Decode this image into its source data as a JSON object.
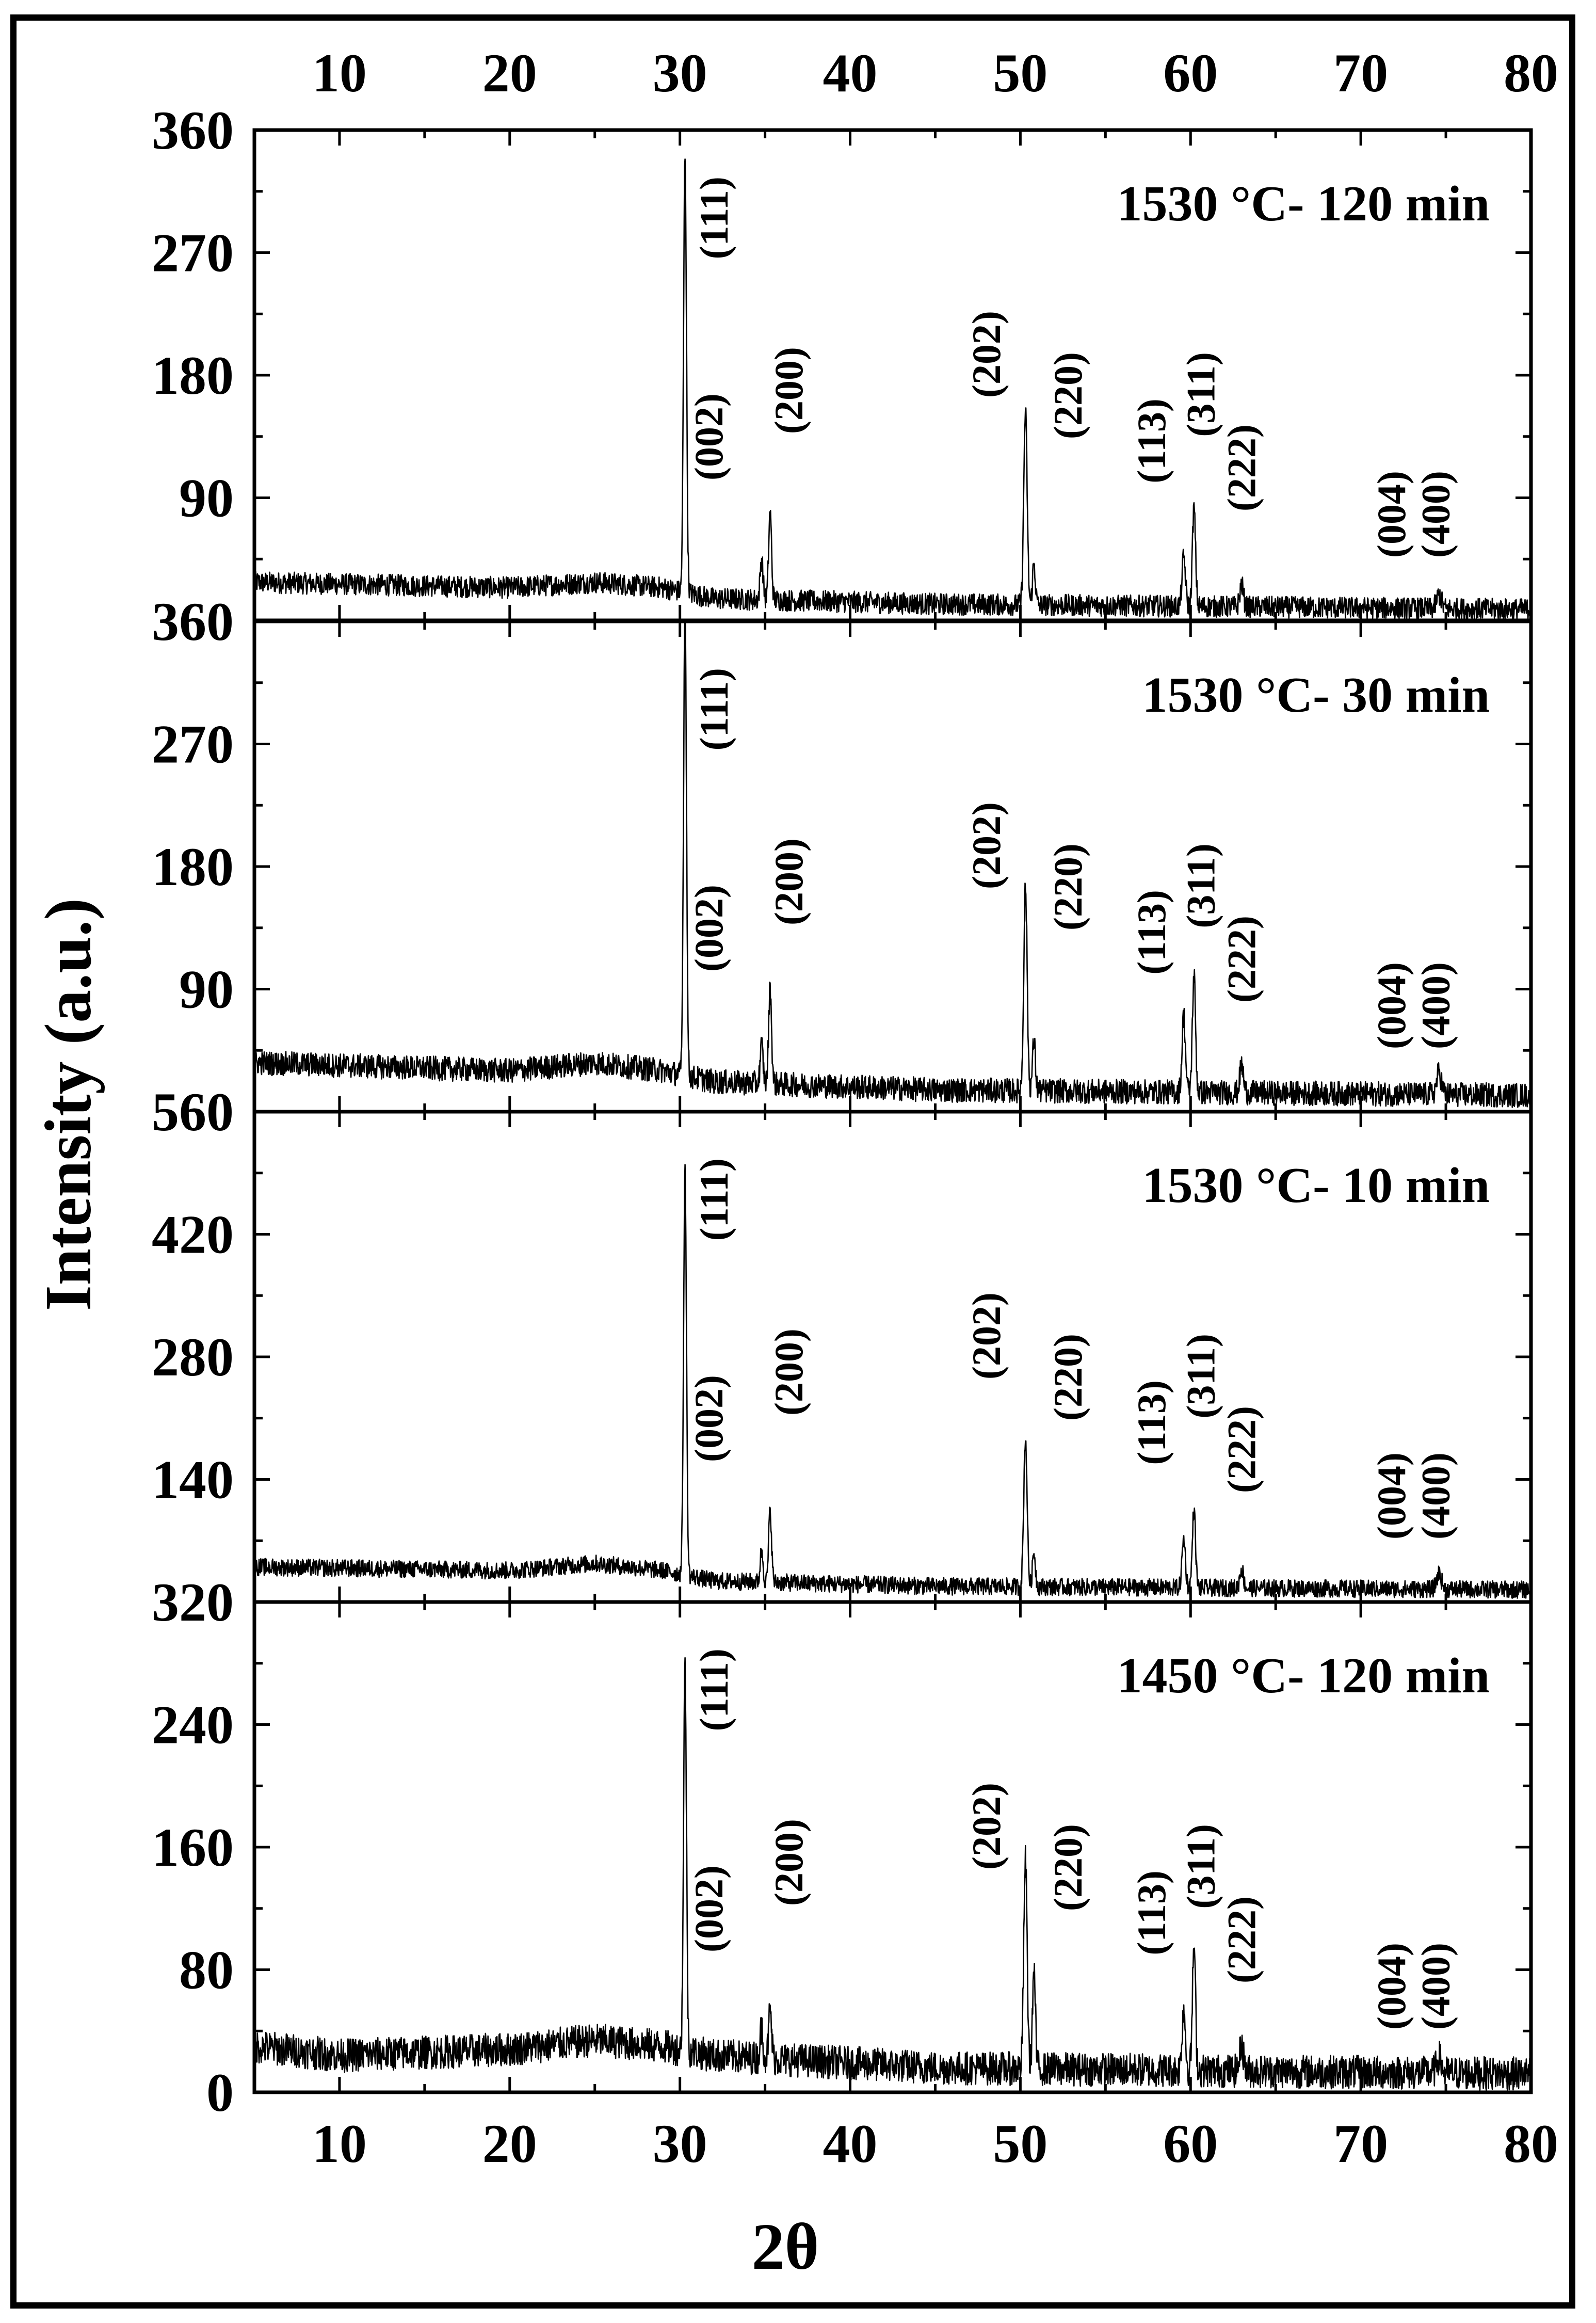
{
  "chart_data": {
    "type": "line",
    "title": "",
    "xlabel": "2θ",
    "ylabel": "Intensity (a.u.)",
    "xlim": [
      5,
      80
    ],
    "x_ticks": [
      10,
      20,
      30,
      40,
      50,
      60,
      70,
      80
    ],
    "top_axis_ticks": [
      10,
      20,
      30,
      40,
      50,
      60,
      70,
      80
    ],
    "grid": false,
    "line_color": "#000000",
    "hkl_labels": [
      "(111)",
      "(002)",
      "(200)",
      "(202)",
      "(220)",
      "(113)",
      "(311)",
      "(222)",
      "(004)",
      "(400)"
    ],
    "panels": [
      {
        "annotation": "1530 °C- 120 min",
        "ylim": [
          0,
          360
        ],
        "y_ticks": [
          90,
          180,
          270,
          360
        ],
        "baseline": [
          [
            5,
            28
          ],
          [
            20,
            24
          ],
          [
            25,
            28
          ],
          [
            29,
            24
          ],
          [
            32,
            16
          ],
          [
            45,
            12
          ],
          [
            80,
            8
          ]
        ],
        "noise": 8,
        "peaks": [
          {
            "x": 30.3,
            "y": 322,
            "w": 0.12
          },
          {
            "x": 34.8,
            "y": 30,
            "w": 0.12
          },
          {
            "x": 35.3,
            "y": 64,
            "w": 0.12
          },
          {
            "x": 50.3,
            "y": 142,
            "w": 0.14
          },
          {
            "x": 50.8,
            "y": 30,
            "w": 0.12
          },
          {
            "x": 59.6,
            "y": 36,
            "w": 0.14
          },
          {
            "x": 60.2,
            "y": 72,
            "w": 0.13
          },
          {
            "x": 63.0,
            "y": 16,
            "w": 0.15
          },
          {
            "x": 74.6,
            "y": 10,
            "w": 0.2
          }
        ]
      },
      {
        "annotation": "1530 °C- 30 min",
        "ylim": [
          0,
          360
        ],
        "y_ticks": [
          90,
          180,
          270,
          360
        ],
        "baseline": [
          [
            5,
            36
          ],
          [
            20,
            30
          ],
          [
            25,
            36
          ],
          [
            29,
            30
          ],
          [
            32,
            22
          ],
          [
            45,
            16
          ],
          [
            80,
            12
          ]
        ],
        "noise": 9,
        "peaks": [
          {
            "x": 30.3,
            "y": 350,
            "w": 0.12
          },
          {
            "x": 34.8,
            "y": 28,
            "w": 0.12
          },
          {
            "x": 35.3,
            "y": 70,
            "w": 0.12
          },
          {
            "x": 50.3,
            "y": 150,
            "w": 0.14
          },
          {
            "x": 50.8,
            "y": 36,
            "w": 0.12
          },
          {
            "x": 59.6,
            "y": 56,
            "w": 0.14
          },
          {
            "x": 60.2,
            "y": 86,
            "w": 0.13
          },
          {
            "x": 63.0,
            "y": 20,
            "w": 0.15
          },
          {
            "x": 74.6,
            "y": 16,
            "w": 0.2
          }
        ]
      },
      {
        "annotation": "1530 °C- 10 min",
        "ylim": [
          0,
          560
        ],
        "y_ticks": [
          140,
          280,
          420,
          560
        ],
        "baseline": [
          [
            5,
            40
          ],
          [
            20,
            36
          ],
          [
            25,
            44
          ],
          [
            29,
            36
          ],
          [
            32,
            24
          ],
          [
            45,
            18
          ],
          [
            80,
            14
          ]
        ],
        "noise": 10,
        "peaks": [
          {
            "x": 30.3,
            "y": 460,
            "w": 0.12
          },
          {
            "x": 34.8,
            "y": 36,
            "w": 0.12
          },
          {
            "x": 35.3,
            "y": 82,
            "w": 0.12
          },
          {
            "x": 50.3,
            "y": 170,
            "w": 0.14
          },
          {
            "x": 50.8,
            "y": 40,
            "w": 0.12
          },
          {
            "x": 59.6,
            "y": 56,
            "w": 0.14
          },
          {
            "x": 60.2,
            "y": 90,
            "w": 0.13
          },
          {
            "x": 63.0,
            "y": 22,
            "w": 0.15
          },
          {
            "x": 74.6,
            "y": 18,
            "w": 0.2
          }
        ]
      },
      {
        "annotation": "1450 °C- 120 min",
        "ylim": [
          0,
          320
        ],
        "y_ticks": [
          0,
          80,
          160,
          240,
          320
        ],
        "baseline": [
          [
            5,
            30
          ],
          [
            10,
            24
          ],
          [
            20,
            28
          ],
          [
            25,
            34
          ],
          [
            29,
            30
          ],
          [
            32,
            24
          ],
          [
            45,
            16
          ],
          [
            80,
            12
          ]
        ],
        "noise": 11,
        "peaks": [
          {
            "x": 30.3,
            "y": 250,
            "w": 0.12
          },
          {
            "x": 34.8,
            "y": 20,
            "w": 0.12
          },
          {
            "x": 35.3,
            "y": 32,
            "w": 0.12
          },
          {
            "x": 50.3,
            "y": 136,
            "w": 0.14
          },
          {
            "x": 50.8,
            "y": 64,
            "w": 0.12
          },
          {
            "x": 59.6,
            "y": 40,
            "w": 0.14
          },
          {
            "x": 60.2,
            "y": 80,
            "w": 0.13
          },
          {
            "x": 63.0,
            "y": 18,
            "w": 0.15
          },
          {
            "x": 74.6,
            "y": 10,
            "w": 0.2
          }
        ]
      }
    ]
  }
}
